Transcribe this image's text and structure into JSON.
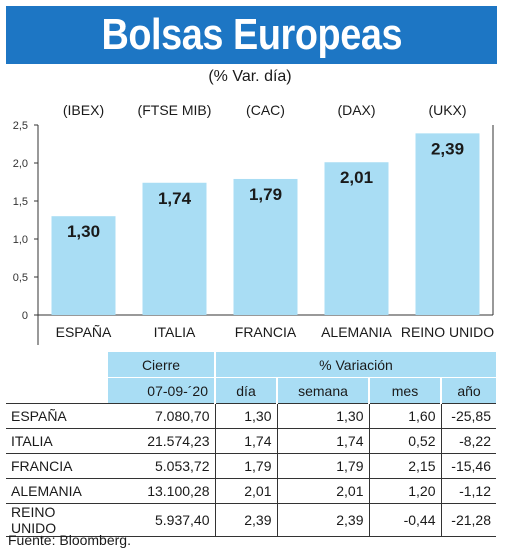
{
  "header": {
    "title": "Bolsas Europeas",
    "subtitle": "(% Var. día)"
  },
  "chart_data": {
    "type": "bar",
    "indices": [
      "(IBEX)",
      "(FTSE MIB)",
      "(CAC)",
      "(DAX)",
      "(UKX)"
    ],
    "categories": [
      "ESPAÑA",
      "ITALIA",
      "FRANCIA",
      "ALEMANIA",
      "REINO UNIDO"
    ],
    "values": [
      1.3,
      1.74,
      1.79,
      2.01,
      2.39
    ],
    "value_labels": [
      "1,30",
      "1,74",
      "1,79",
      "2,01",
      "2,39"
    ],
    "yticks": [
      "0",
      "0,5",
      "1,0",
      "1,5",
      "2,0",
      "2,5"
    ],
    "ylim": [
      0,
      2.5
    ],
    "bar_color": "#a9ddf4",
    "grid": false
  },
  "table": {
    "header_top": {
      "cierre": "Cierre",
      "variacion": "% Variación"
    },
    "header_sub": {
      "fecha": "07-09-´20",
      "dia": "día",
      "semana": "semana",
      "mes": "mes",
      "ano": "año"
    },
    "rows": [
      {
        "pais": "ESPAÑA",
        "cierre": "7.080,70",
        "dia": "1,30",
        "semana": "1,30",
        "mes": "1,60",
        "ano": "-25,85"
      },
      {
        "pais": "ITALIA",
        "cierre": "21.574,23",
        "dia": "1,74",
        "semana": "1,74",
        "mes": "0,52",
        "ano": "-8,22"
      },
      {
        "pais": "FRANCIA",
        "cierre": "5.053,72",
        "dia": "1,79",
        "semana": "1,79",
        "mes": "2,15",
        "ano": "-15,46"
      },
      {
        "pais": "ALEMANIA",
        "cierre": "13.100,28",
        "dia": "2,01",
        "semana": "2,01",
        "mes": "1,20",
        "ano": "-1,12"
      },
      {
        "pais": "REINO UNIDO",
        "cierre": "5.937,40",
        "dia": "2,39",
        "semana": "2,39",
        "mes": "-0,44",
        "ano": "-21,28"
      }
    ]
  },
  "footer": {
    "source": "Fuente: Bloomberg."
  },
  "colors": {
    "banner": "#1d76c4",
    "accent_light": "#a9ddf4"
  }
}
